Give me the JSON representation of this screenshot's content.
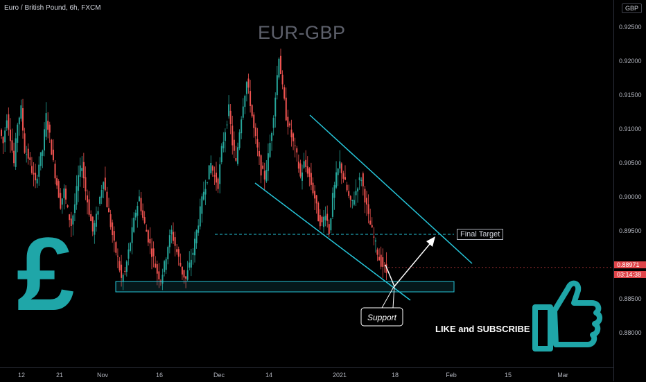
{
  "header": {
    "symbol_title": "Euro / British Pound, 6h, FXCM",
    "currency": "GBP"
  },
  "watermark": "EUR-GBP",
  "chart_data": {
    "type": "candlestick",
    "symbol": "EURGBP",
    "timeframe": "6h",
    "x_tick_labels": [
      "12",
      "21",
      "Nov",
      "16",
      "Dec",
      "14",
      "2021",
      "18",
      "Feb",
      "15",
      "Mar"
    ],
    "y_tick_labels": [
      "0.92500",
      "0.92000",
      "0.91500",
      "0.91000",
      "0.90500",
      "0.90000",
      "0.89500",
      "0.88500",
      "0.88000"
    ],
    "ylim": [
      0.8755,
      0.9272
    ],
    "last_price": "0.88971",
    "countdown": "03:14:38",
    "ohlc_path": [
      0.91,
      0.908,
      0.912,
      0.909,
      0.905,
      0.911,
      0.913,
      0.907,
      0.906,
      0.904,
      0.902,
      0.905,
      0.907,
      0.912,
      0.909,
      0.905,
      0.902,
      0.899,
      0.901,
      0.898,
      0.896,
      0.899,
      0.903,
      0.905,
      0.901,
      0.898,
      0.895,
      0.897,
      0.9,
      0.903,
      0.899,
      0.896,
      0.893,
      0.891,
      0.888,
      0.889,
      0.892,
      0.895,
      0.898,
      0.9,
      0.897,
      0.895,
      0.893,
      0.891,
      0.889,
      0.888,
      0.89,
      0.893,
      0.895,
      0.893,
      0.891,
      0.889,
      0.888,
      0.89,
      0.892,
      0.895,
      0.898,
      0.901,
      0.903,
      0.905,
      0.903,
      0.902,
      0.907,
      0.91,
      0.913,
      0.908,
      0.905,
      0.91,
      0.914,
      0.917,
      0.914,
      0.91,
      0.907,
      0.904,
      0.903,
      0.906,
      0.91,
      0.915,
      0.921,
      0.916,
      0.912,
      0.91,
      0.908,
      0.906,
      0.903,
      0.905,
      0.904,
      0.902,
      0.9,
      0.897,
      0.896,
      0.898,
      0.895,
      0.9,
      0.903,
      0.905,
      0.903,
      0.901,
      0.899,
      0.9,
      0.902,
      0.903,
      0.9,
      0.897,
      0.895,
      0.893,
      0.891,
      0.89,
      0.889
    ],
    "annotations": {
      "support_zone": {
        "price_from": 0.8858,
        "price_to": 0.8873,
        "label": "Support"
      },
      "final_target": {
        "price": 0.8945,
        "label": "Final Target"
      },
      "descending_channel": true,
      "projection_arrow": true
    },
    "colors": {
      "up": "#26a69a",
      "down": "#ef5350",
      "accent": "#26c6da",
      "badge": "#e0454a"
    }
  },
  "decorations": {
    "pound_symbol": "£",
    "thumbs_up_icon": "thumbs-up-icon",
    "teal": "#1fa6a8"
  },
  "cta": {
    "like_subscribe": "LIKE and SUBSCRIBE"
  }
}
